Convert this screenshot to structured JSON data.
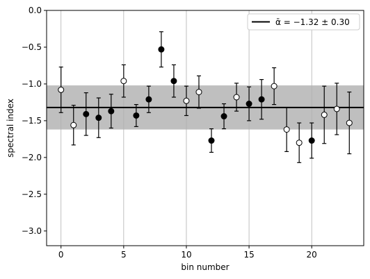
{
  "chart_data": {
    "type": "scatter",
    "title": "",
    "xlabel": "bin number",
    "ylabel": "spectral index",
    "xlim": [
      -1.15,
      24.15
    ],
    "ylim": [
      -3.2,
      0.0
    ],
    "xticks": [
      0,
      5,
      10,
      15,
      20
    ],
    "yticks": [
      0.0,
      -0.5,
      -1.0,
      -1.5,
      -2.0,
      -2.5,
      -3.0
    ],
    "xtick_labels": [
      "0",
      "5",
      "10",
      "15",
      "20"
    ],
    "ytick_labels": [
      "0.0",
      "−0.5",
      "−1.0",
      "−1.5",
      "−2.0",
      "−2.5",
      "−3.0"
    ],
    "grid": "x-axis vertical lines",
    "legend_position": "top-right",
    "legend_label": "ᾱ = −1.32 ± 0.30",
    "mean": -1.32,
    "mean_error": 0.3,
    "band_color": "#bfbfbf",
    "line_color": "#000000",
    "marker_fill_open": "#ffffff",
    "marker_fill_closed": "#000000",
    "points": [
      {
        "x": 0,
        "y": -1.08,
        "err": 0.31,
        "filled": false
      },
      {
        "x": 1,
        "y": -1.56,
        "err": 0.27,
        "filled": false
      },
      {
        "x": 2,
        "y": -1.41,
        "err": 0.29,
        "filled": true
      },
      {
        "x": 3,
        "y": -1.46,
        "err": 0.27,
        "filled": true
      },
      {
        "x": 4,
        "y": -1.37,
        "err": 0.23,
        "filled": true
      },
      {
        "x": 5,
        "y": -0.96,
        "err": 0.22,
        "filled": false
      },
      {
        "x": 6,
        "y": -1.43,
        "err": 0.15,
        "filled": true
      },
      {
        "x": 7,
        "y": -1.21,
        "err": 0.18,
        "filled": true
      },
      {
        "x": 8,
        "y": -0.53,
        "err": 0.24,
        "filled": true
      },
      {
        "x": 9,
        "y": -0.96,
        "err": 0.22,
        "filled": true
      },
      {
        "x": 10,
        "y": -1.23,
        "err": 0.2,
        "filled": false
      },
      {
        "x": 11,
        "y": -1.11,
        "err": 0.22,
        "filled": false
      },
      {
        "x": 12,
        "y": -1.77,
        "err": 0.16,
        "filled": true
      },
      {
        "x": 13,
        "y": -1.44,
        "err": 0.17,
        "filled": true
      },
      {
        "x": 14,
        "y": -1.18,
        "err": 0.19,
        "filled": false
      },
      {
        "x": 15,
        "y": -1.27,
        "err": 0.23,
        "filled": true
      },
      {
        "x": 16,
        "y": -1.21,
        "err": 0.27,
        "filled": true
      },
      {
        "x": 17,
        "y": -1.03,
        "err": 0.25,
        "filled": false
      },
      {
        "x": 18,
        "y": -1.62,
        "err": 0.3,
        "filled": false
      },
      {
        "x": 19,
        "y": -1.8,
        "err": 0.27,
        "filled": false
      },
      {
        "x": 20,
        "y": -1.77,
        "err": 0.24,
        "filled": true
      },
      {
        "x": 21,
        "y": -1.42,
        "err": 0.39,
        "filled": false
      },
      {
        "x": 22,
        "y": -1.34,
        "err": 0.35,
        "filled": false
      },
      {
        "x": 23,
        "y": -1.53,
        "err": 0.42,
        "filled": false
      }
    ]
  }
}
